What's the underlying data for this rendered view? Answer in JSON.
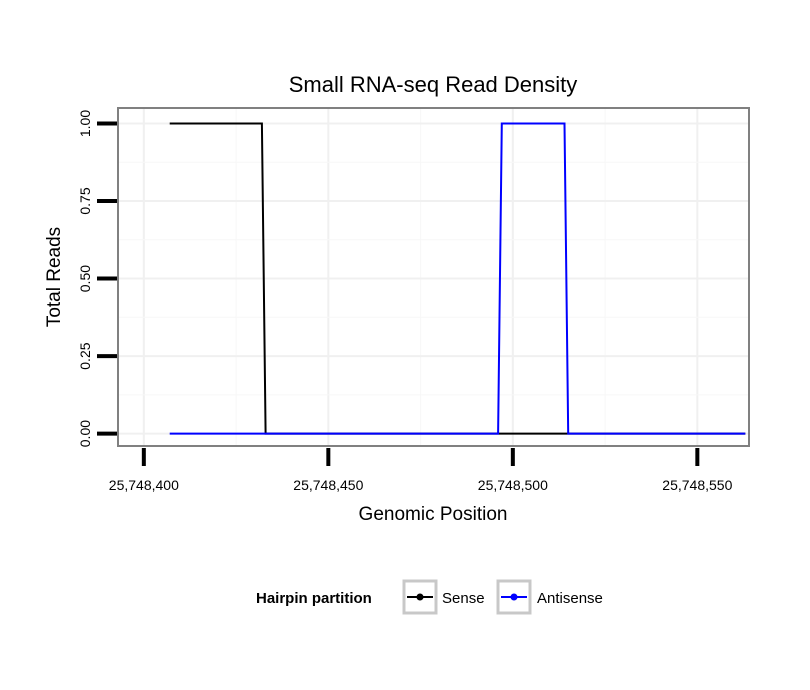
{
  "chart_data": {
    "type": "line",
    "title": "Small RNA-seq Read Density",
    "xlabel": "Genomic Position",
    "ylabel": "Total Reads",
    "xlim": [
      25748393,
      25748564
    ],
    "ylim": [
      -0.04,
      1.05
    ],
    "x_ticks": [
      25748400,
      25748450,
      25748500,
      25748550
    ],
    "x_tick_labels": [
      "25,748,400",
      "25,748,450",
      "25,748,500",
      "25,748,550"
    ],
    "y_ticks": [
      0,
      0.25,
      0.5,
      0.75,
      1
    ],
    "y_tick_labels": [
      "0.00",
      "0.25",
      "0.50",
      "0.75",
      "1.00"
    ],
    "grid": true,
    "legend": {
      "title": "Hairpin partition",
      "position": "bottom"
    },
    "series": [
      {
        "name": "Sense",
        "color": "#000000",
        "x": [
          25748407,
          25748432,
          25748433,
          25748563
        ],
        "y": [
          1,
          1,
          0,
          0
        ]
      },
      {
        "name": "Antisense",
        "color": "#0000ff",
        "x": [
          25748407,
          25748496,
          25748497,
          25748514,
          25748515,
          25748563
        ],
        "y": [
          0,
          0,
          1,
          1,
          0,
          0
        ]
      }
    ]
  }
}
